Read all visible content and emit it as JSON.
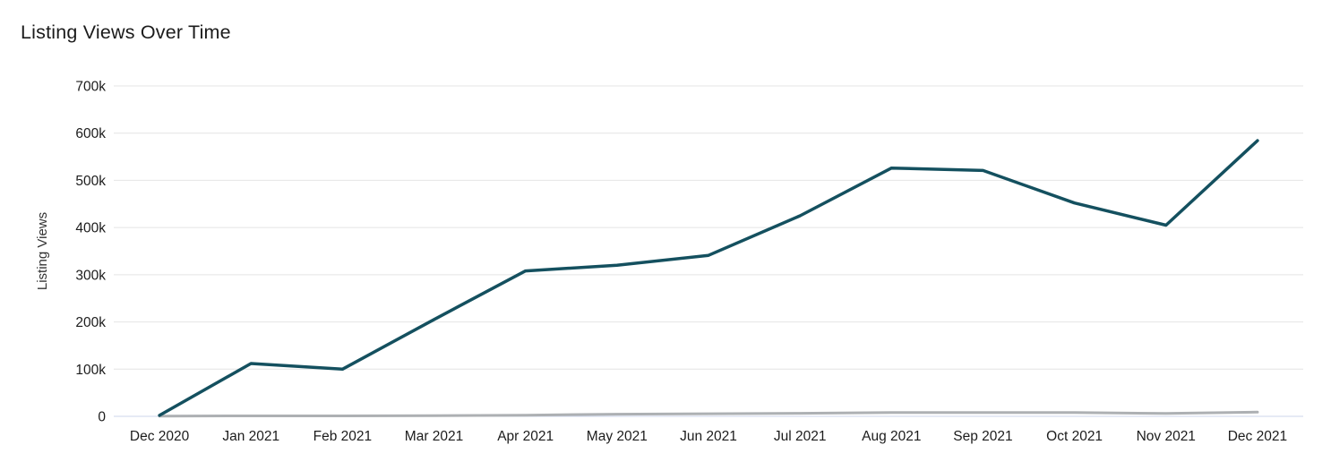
{
  "chart": {
    "title": "Listing Views Over Time"
  },
  "chart_data": {
    "type": "line",
    "title": "Listing Views Over Time",
    "xlabel": "",
    "ylabel": "Listing Views",
    "categories": [
      "Dec 2020",
      "Jan 2021",
      "Feb 2021",
      "Mar 2021",
      "Apr 2021",
      "May 2021",
      "Jun 2021",
      "Jul 2021",
      "Aug 2021",
      "Sep 2021",
      "Oct 2021",
      "Nov 2021",
      "Dec 2021"
    ],
    "series": [
      {
        "name": "Listing Views",
        "color": "#14505f",
        "line_width": 3.5,
        "values": [
          2000,
          112000,
          100000,
          205000,
          308000,
          320000,
          341000,
          425000,
          526000,
          521000,
          452000,
          405000,
          584000
        ]
      },
      {
        "name": "",
        "color": "#adb0b3",
        "line_width": 3,
        "values": [
          500,
          1000,
          1000,
          1500,
          2500,
          4500,
          5500,
          6500,
          8000,
          8000,
          8000,
          6000,
          9000
        ]
      }
    ],
    "ylim": [
      0,
      700000
    ],
    "yticks": [
      0,
      100000,
      200000,
      300000,
      400000,
      500000,
      600000,
      700000
    ],
    "ytick_labels": [
      "0",
      "100k",
      "200k",
      "300k",
      "400k",
      "500k",
      "600k",
      "700k"
    ],
    "grid": true,
    "legend_position": "none",
    "colors": {
      "gridline": "#e4e4e4",
      "zero_axis_line": "#ccd6eb",
      "tick_text": "#1c1c1c",
      "title_text": "#1b1b1b"
    }
  }
}
